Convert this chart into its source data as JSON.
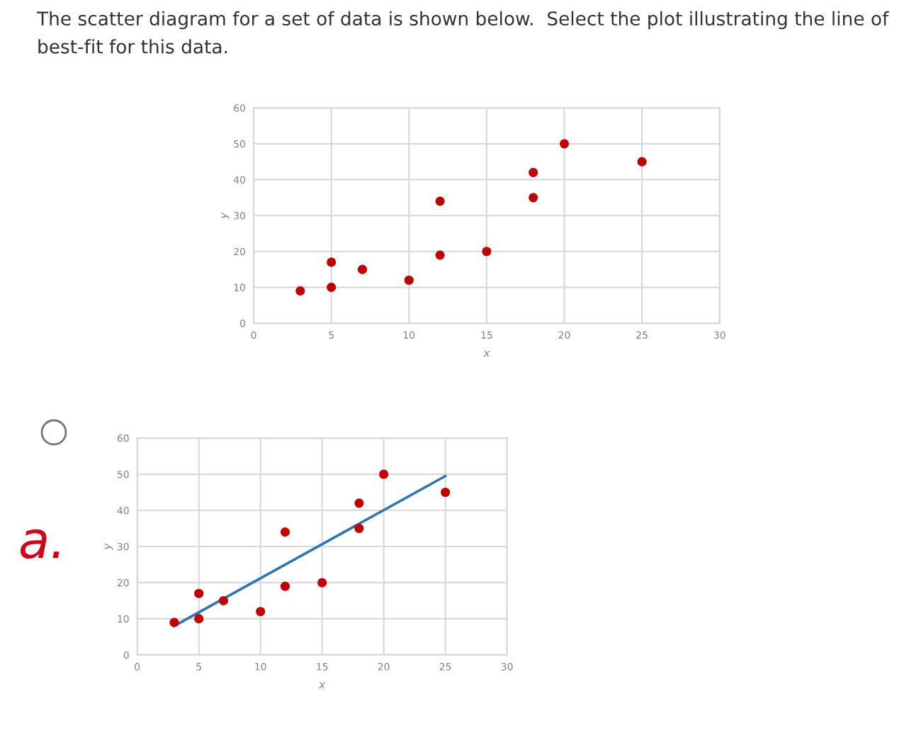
{
  "chart_data": [
    {
      "type": "scatter",
      "title": "The scatter diagram for a set of data is shown below.  Select the plot illustrating the line of best-fit for this data.",
      "xlabel": "x",
      "ylabel": "y",
      "xlim": [
        0,
        30
      ],
      "ylim": [
        0,
        60
      ],
      "xticks": [
        0,
        5,
        10,
        15,
        20,
        25,
        30
      ],
      "yticks": [
        0,
        10,
        20,
        30,
        40,
        50,
        60
      ],
      "grid": true,
      "marker": "circle",
      "series": [
        {
          "color": "#c00000",
          "x": [
            3,
            5,
            5,
            7,
            10,
            12,
            12,
            15,
            18,
            18,
            20,
            25
          ],
          "values": [
            9,
            17,
            10,
            15,
            12,
            34,
            19,
            20,
            42,
            35,
            50,
            45
          ]
        }
      ]
    },
    {
      "type": "scatter",
      "xlabel": "x",
      "ylabel": "y",
      "xlim": [
        0,
        30
      ],
      "ylim": [
        0,
        60
      ],
      "xticks": [
        0,
        5,
        10,
        15,
        20,
        25,
        30
      ],
      "yticks": [
        0,
        10,
        20,
        30,
        40,
        50,
        60
      ],
      "grid": true,
      "marker": "circle",
      "annotations": [
        "a."
      ],
      "series": [
        {
          "color": "#c00000",
          "x": [
            3,
            5,
            5,
            7,
            10,
            12,
            12,
            15,
            18,
            18,
            20,
            25
          ],
          "values": [
            9,
            17,
            10,
            15,
            12,
            34,
            19,
            20,
            42,
            35,
            50,
            45
          ]
        },
        {
          "type": "line",
          "color": "#2e75b6",
          "marker": "none",
          "x": [
            3,
            25
          ],
          "values": [
            8,
            49.5
          ]
        }
      ]
    }
  ]
}
